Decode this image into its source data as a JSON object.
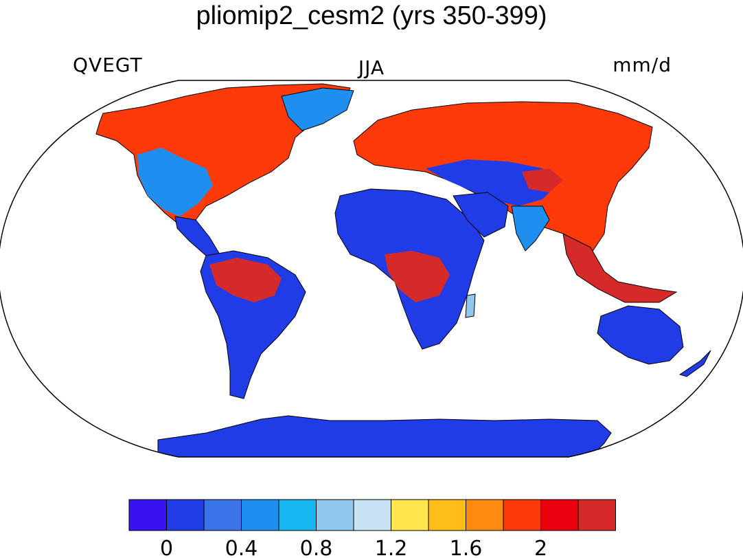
{
  "title": "pliomip2_cesm2 (yrs 350-399)",
  "variable": "QVEGT",
  "season": "JJA",
  "units": "mm/d",
  "colorbar": {
    "colors": [
      "#3a12f2",
      "#1f3ce6",
      "#3a74e6",
      "#1f8fef",
      "#17b7f2",
      "#8fc8ec",
      "#c8e4f4",
      "#ffe64f",
      "#ffbd1a",
      "#ff8a12",
      "#ff3a0a",
      "#e8000e",
      "#d42a2a"
    ],
    "tick_labels": [
      "0",
      "0.4",
      "0.8",
      "1.2",
      "1.6",
      "2"
    ],
    "tick_boundary_index": [
      1,
      3,
      5,
      7,
      9,
      11
    ]
  }
}
